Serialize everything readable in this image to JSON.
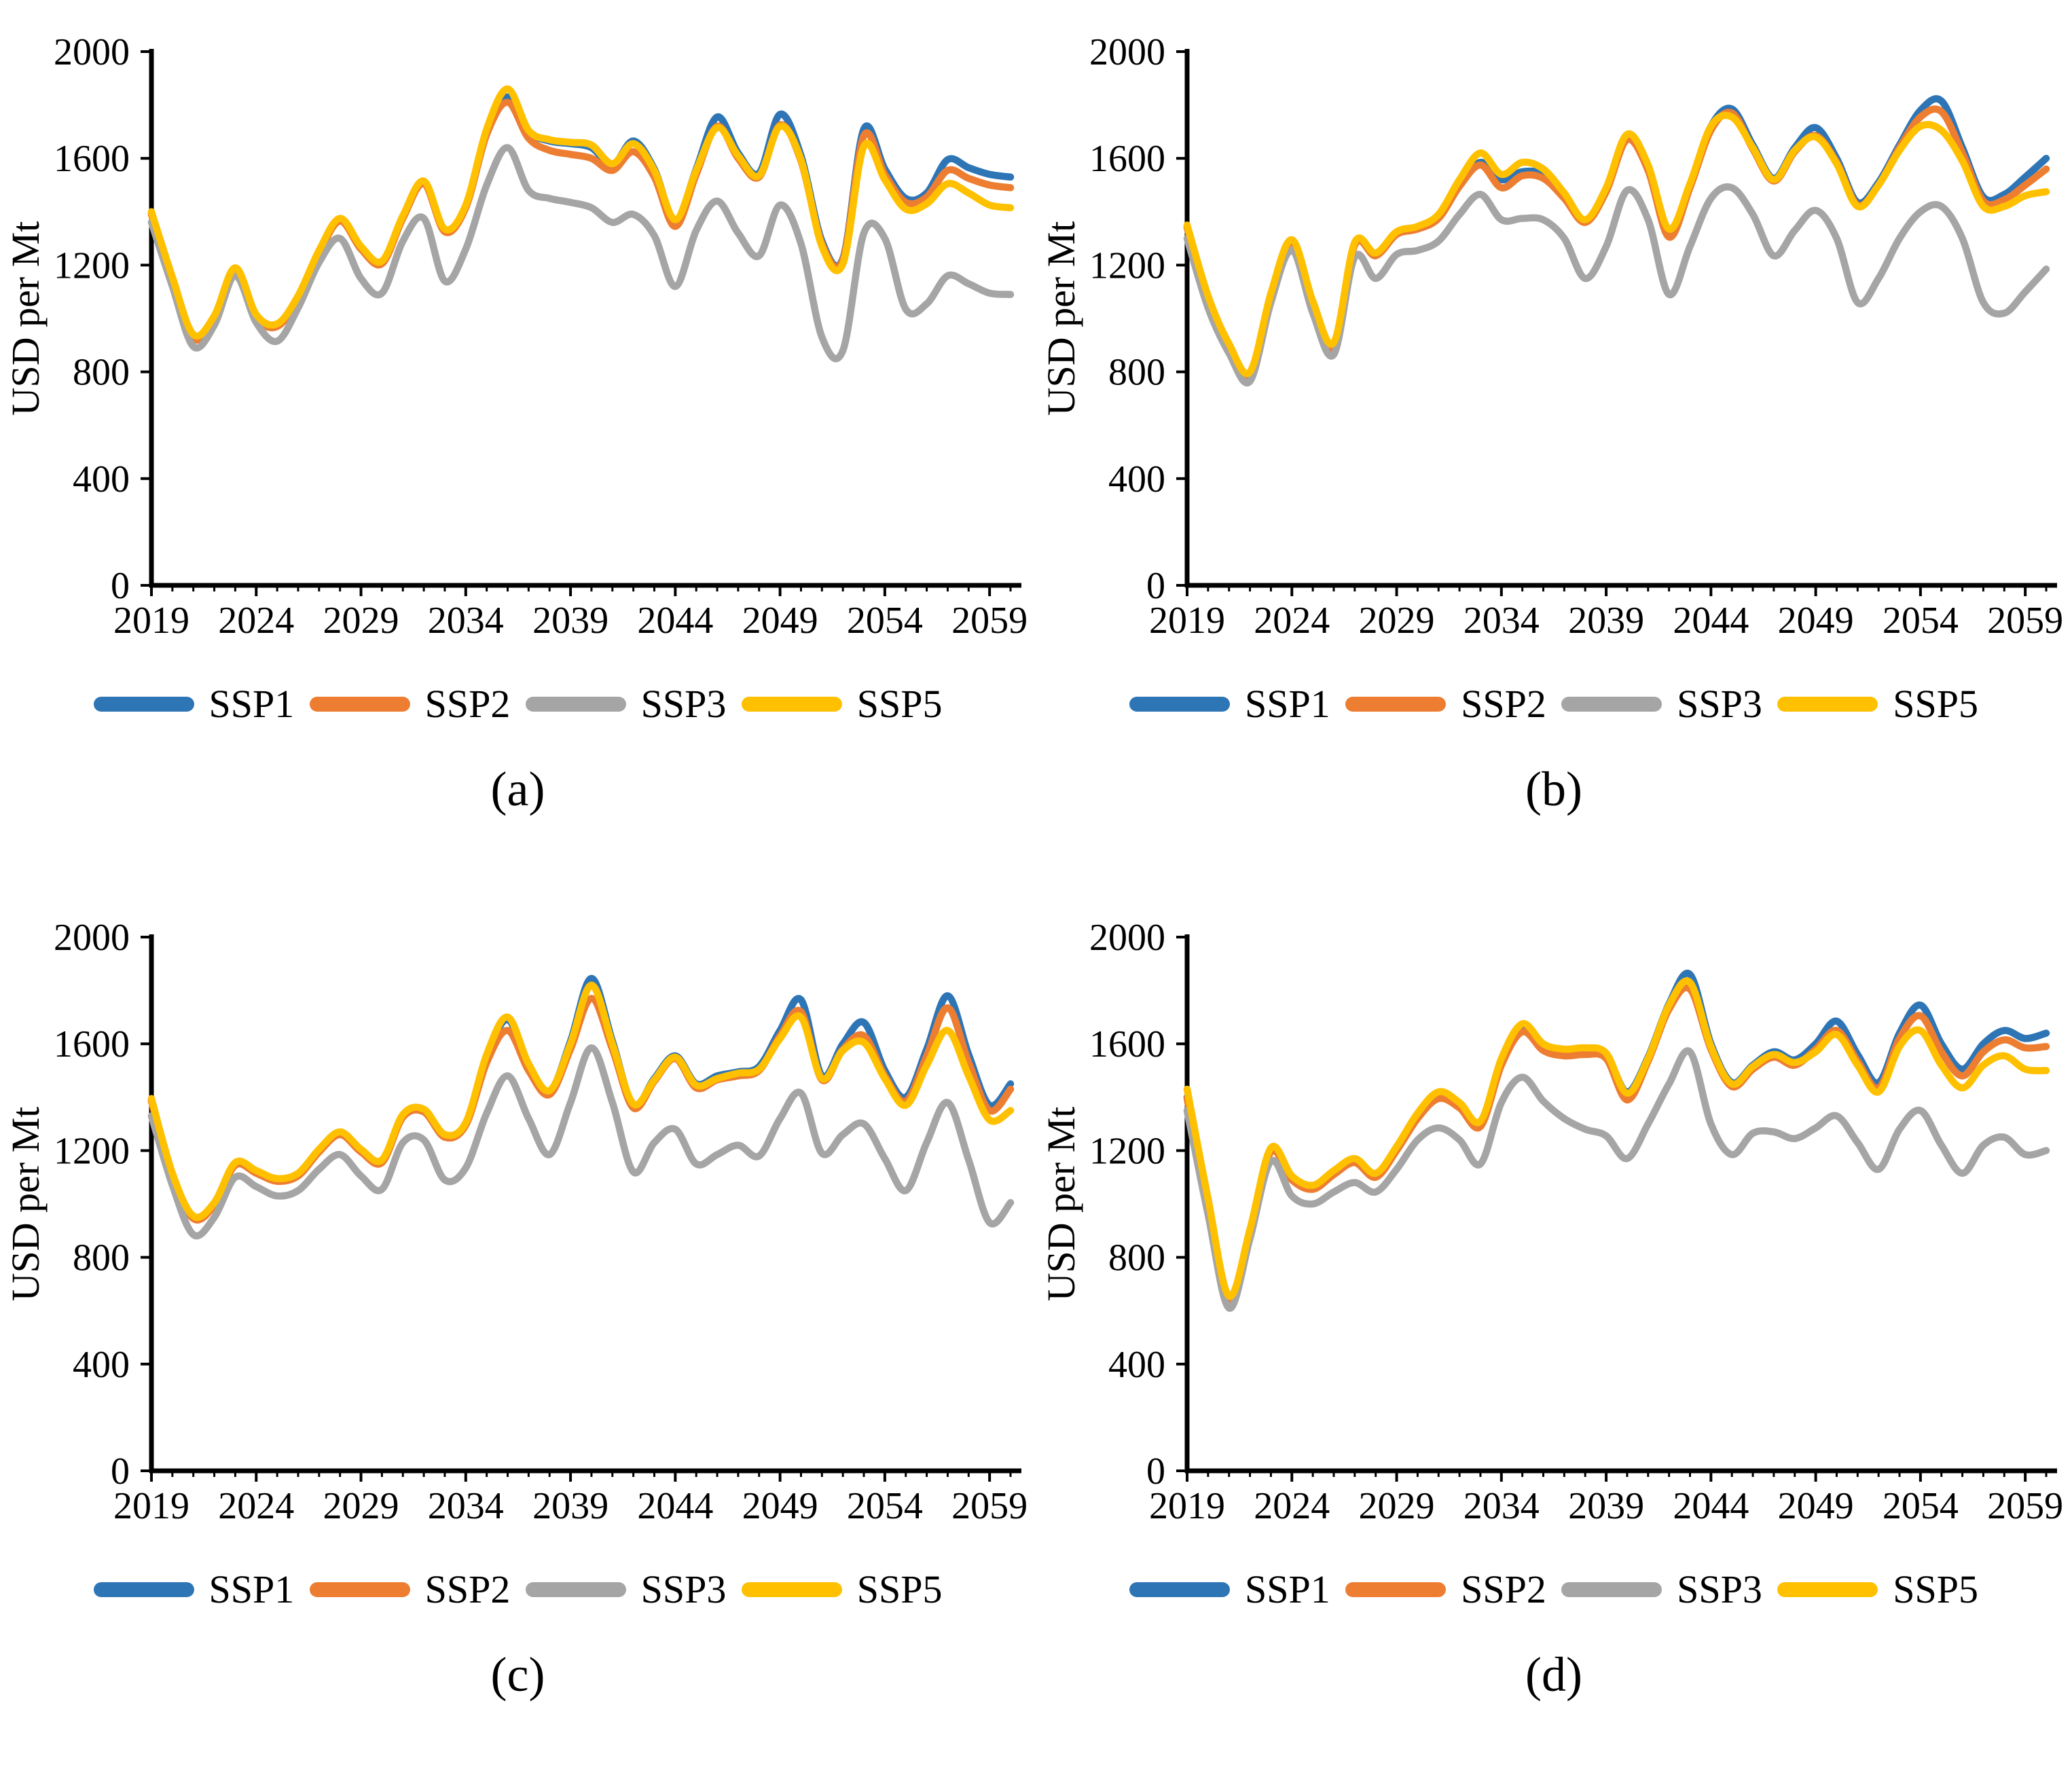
{
  "figure": {
    "y_axis_label": "USD per Mt",
    "background": "#FFFFFF",
    "axis_color": "#000000",
    "ylim": [
      0,
      2000
    ],
    "xlim": [
      2019,
      2060
    ],
    "y_ticks": [
      0,
      400,
      800,
      1200,
      1600,
      2000
    ],
    "x_tick_years": [
      2019,
      2024,
      2029,
      2034,
      2039,
      2044,
      2049,
      2054,
      2059
    ],
    "grid": "off",
    "legend_position": "bottom",
    "legend": [
      {
        "label": "SSP1",
        "color": "#2E75B6"
      },
      {
        "label": "SSP2",
        "color": "#ED7D31"
      },
      {
        "label": "SSP3",
        "color": "#A5A5A5"
      },
      {
        "label": "SSP5",
        "color": "#FFC000"
      }
    ]
  },
  "chart_data": [
    {
      "type": "line",
      "panel": "a",
      "caption": "(a)",
      "x_start": 2019,
      "x_step": 1,
      "series": [
        {
          "name": "SSP1",
          "color": "#2E75B6",
          "values": [
            1395,
            1150,
            935,
            1005,
            1185,
            1010,
            975,
            1080,
            1250,
            1370,
            1265,
            1210,
            1380,
            1510,
            1330,
            1420,
            1700,
            1830,
            1700,
            1665,
            1655,
            1640,
            1575,
            1665,
            1560,
            1365,
            1560,
            1755,
            1620,
            1545,
            1765,
            1610,
            1290,
            1225,
            1710,
            1560,
            1450,
            1470,
            1595,
            1565,
            1540,
            1530
          ]
        },
        {
          "name": "SSP2",
          "color": "#ED7D31",
          "values": [
            1390,
            1145,
            925,
            1000,
            1180,
            1005,
            970,
            1075,
            1245,
            1365,
            1260,
            1205,
            1375,
            1505,
            1325,
            1415,
            1690,
            1810,
            1675,
            1630,
            1615,
            1600,
            1555,
            1625,
            1530,
            1345,
            1540,
            1720,
            1600,
            1530,
            1725,
            1590,
            1280,
            1220,
            1685,
            1540,
            1435,
            1455,
            1555,
            1525,
            1500,
            1490
          ]
        },
        {
          "name": "SSP3",
          "color": "#A5A5A5",
          "values": [
            1360,
            1120,
            895,
            975,
            1160,
            985,
            915,
            1040,
            1210,
            1300,
            1150,
            1095,
            1290,
            1375,
            1140,
            1260,
            1500,
            1640,
            1480,
            1450,
            1435,
            1415,
            1360,
            1390,
            1310,
            1120,
            1330,
            1440,
            1320,
            1235,
            1425,
            1280,
            930,
            880,
            1320,
            1300,
            1035,
            1055,
            1160,
            1130,
            1095,
            1090
          ]
        },
        {
          "name": "SSP5",
          "color": "#FFC000",
          "values": [
            1400,
            1155,
            940,
            1010,
            1190,
            1015,
            980,
            1085,
            1255,
            1375,
            1270,
            1215,
            1385,
            1515,
            1335,
            1425,
            1710,
            1860,
            1705,
            1670,
            1660,
            1650,
            1580,
            1655,
            1555,
            1370,
            1555,
            1715,
            1610,
            1535,
            1720,
            1595,
            1270,
            1205,
            1645,
            1520,
            1410,
            1430,
            1505,
            1470,
            1425,
            1415
          ]
        }
      ]
    },
    {
      "type": "line",
      "panel": "b",
      "caption": "(b)",
      "x_start": 2019,
      "x_step": 1,
      "series": [
        {
          "name": "SSP1",
          "color": "#2E75B6",
          "values": [
            1345,
            1080,
            900,
            795,
            1090,
            1290,
            1060,
            905,
            1280,
            1240,
            1320,
            1340,
            1380,
            1500,
            1585,
            1520,
            1550,
            1540,
            1460,
            1365,
            1480,
            1680,
            1570,
            1330,
            1500,
            1720,
            1785,
            1650,
            1525,
            1640,
            1715,
            1600,
            1435,
            1510,
            1650,
            1780,
            1815,
            1640,
            1455,
            1465,
            1530,
            1600
          ]
        },
        {
          "name": "SSP2",
          "color": "#ED7D31",
          "values": [
            1340,
            1075,
            895,
            790,
            1085,
            1285,
            1055,
            895,
            1275,
            1235,
            1315,
            1335,
            1375,
            1495,
            1575,
            1490,
            1535,
            1525,
            1450,
            1360,
            1475,
            1670,
            1555,
            1305,
            1490,
            1705,
            1770,
            1635,
            1515,
            1625,
            1685,
            1585,
            1425,
            1500,
            1640,
            1755,
            1775,
            1620,
            1440,
            1445,
            1500,
            1560
          ]
        },
        {
          "name": "SSP3",
          "color": "#A5A5A5",
          "values": [
            1300,
            1040,
            870,
            765,
            1060,
            1255,
            1020,
            865,
            1230,
            1150,
            1240,
            1255,
            1290,
            1390,
            1465,
            1370,
            1375,
            1370,
            1300,
            1150,
            1270,
            1480,
            1370,
            1090,
            1270,
            1450,
            1490,
            1390,
            1235,
            1330,
            1405,
            1300,
            1060,
            1150,
            1300,
            1400,
            1420,
            1300,
            1060,
            1020,
            1100,
            1185
          ]
        },
        {
          "name": "SSP5",
          "color": "#FFC000",
          "values": [
            1350,
            1085,
            905,
            800,
            1095,
            1295,
            1065,
            910,
            1285,
            1245,
            1325,
            1345,
            1390,
            1520,
            1620,
            1540,
            1585,
            1560,
            1470,
            1370,
            1490,
            1690,
            1575,
            1335,
            1505,
            1720,
            1755,
            1640,
            1520,
            1630,
            1680,
            1580,
            1420,
            1500,
            1630,
            1720,
            1705,
            1590,
            1420,
            1420,
            1460,
            1475
          ]
        }
      ]
    },
    {
      "type": "line",
      "panel": "c",
      "caption": "(c)",
      "x_start": 2019,
      "x_step": 1,
      "series": [
        {
          "name": "SSP1",
          "color": "#2E75B6",
          "values": [
            1390,
            1110,
            950,
            1000,
            1150,
            1120,
            1090,
            1110,
            1200,
            1265,
            1200,
            1160,
            1330,
            1350,
            1255,
            1300,
            1550,
            1690,
            1520,
            1420,
            1610,
            1845,
            1610,
            1370,
            1470,
            1555,
            1450,
            1480,
            1495,
            1515,
            1650,
            1765,
            1480,
            1600,
            1680,
            1500,
            1400,
            1580,
            1780,
            1560,
            1370,
            1450
          ]
        },
        {
          "name": "SSP2",
          "color": "#ED7D31",
          "values": [
            1385,
            1105,
            945,
            995,
            1145,
            1115,
            1085,
            1105,
            1195,
            1260,
            1195,
            1155,
            1325,
            1345,
            1250,
            1295,
            1530,
            1650,
            1500,
            1410,
            1580,
            1770,
            1580,
            1360,
            1460,
            1545,
            1435,
            1465,
            1480,
            1500,
            1630,
            1720,
            1465,
            1580,
            1630,
            1480,
            1385,
            1555,
            1735,
            1530,
            1350,
            1430
          ]
        },
        {
          "name": "SSP3",
          "color": "#A5A5A5",
          "values": [
            1330,
            1070,
            885,
            950,
            1100,
            1065,
            1030,
            1050,
            1130,
            1185,
            1105,
            1055,
            1230,
            1240,
            1090,
            1135,
            1340,
            1480,
            1320,
            1185,
            1380,
            1585,
            1380,
            1120,
            1230,
            1280,
            1150,
            1185,
            1220,
            1180,
            1320,
            1415,
            1190,
            1260,
            1300,
            1170,
            1050,
            1230,
            1380,
            1165,
            930,
            1005
          ]
        },
        {
          "name": "SSP5",
          "color": "#FFC000",
          "values": [
            1395,
            1115,
            955,
            1005,
            1155,
            1125,
            1095,
            1115,
            1205,
            1270,
            1205,
            1165,
            1335,
            1355,
            1260,
            1305,
            1560,
            1700,
            1525,
            1425,
            1600,
            1820,
            1600,
            1375,
            1465,
            1550,
            1445,
            1470,
            1490,
            1505,
            1620,
            1700,
            1470,
            1575,
            1605,
            1470,
            1370,
            1520,
            1650,
            1480,
            1315,
            1350
          ]
        }
      ]
    },
    {
      "type": "line",
      "panel": "d",
      "caption": "(d)",
      "x_start": 2019,
      "x_step": 1,
      "series": [
        {
          "name": "SSP1",
          "color": "#2E75B6",
          "values": [
            1400,
            1000,
            645,
            900,
            1200,
            1100,
            1065,
            1120,
            1165,
            1110,
            1210,
            1330,
            1405,
            1370,
            1300,
            1530,
            1655,
            1590,
            1570,
            1575,
            1560,
            1420,
            1550,
            1750,
            1860,
            1600,
            1455,
            1520,
            1570,
            1540,
            1600,
            1685,
            1560,
            1455,
            1640,
            1745,
            1600,
            1505,
            1600,
            1650,
            1620,
            1640
          ]
        },
        {
          "name": "SSP2",
          "color": "#ED7D31",
          "values": [
            1395,
            995,
            640,
            895,
            1195,
            1090,
            1055,
            1110,
            1155,
            1100,
            1200,
            1320,
            1395,
            1360,
            1290,
            1520,
            1645,
            1575,
            1555,
            1560,
            1545,
            1390,
            1535,
            1730,
            1805,
            1580,
            1440,
            1505,
            1550,
            1520,
            1580,
            1650,
            1535,
            1435,
            1620,
            1705,
            1570,
            1480,
            1570,
            1615,
            1585,
            1590
          ]
        },
        {
          "name": "SSP3",
          "color": "#A5A5A5",
          "values": [
            1350,
            960,
            610,
            870,
            1160,
            1030,
            1000,
            1045,
            1080,
            1045,
            1130,
            1240,
            1285,
            1240,
            1150,
            1380,
            1475,
            1385,
            1320,
            1280,
            1255,
            1170,
            1300,
            1450,
            1570,
            1300,
            1185,
            1265,
            1270,
            1245,
            1285,
            1330,
            1230,
            1130,
            1280,
            1350,
            1220,
            1115,
            1220,
            1250,
            1185,
            1200
          ]
        },
        {
          "name": "SSP5",
          "color": "#FFC000",
          "values": [
            1430,
            1020,
            655,
            905,
            1210,
            1105,
            1070,
            1125,
            1170,
            1115,
            1215,
            1340,
            1420,
            1380,
            1310,
            1545,
            1675,
            1600,
            1580,
            1585,
            1565,
            1415,
            1545,
            1745,
            1830,
            1590,
            1450,
            1515,
            1560,
            1530,
            1570,
            1635,
            1520,
            1420,
            1590,
            1650,
            1520,
            1435,
            1520,
            1555,
            1505,
            1500
          ]
        }
      ]
    }
  ]
}
